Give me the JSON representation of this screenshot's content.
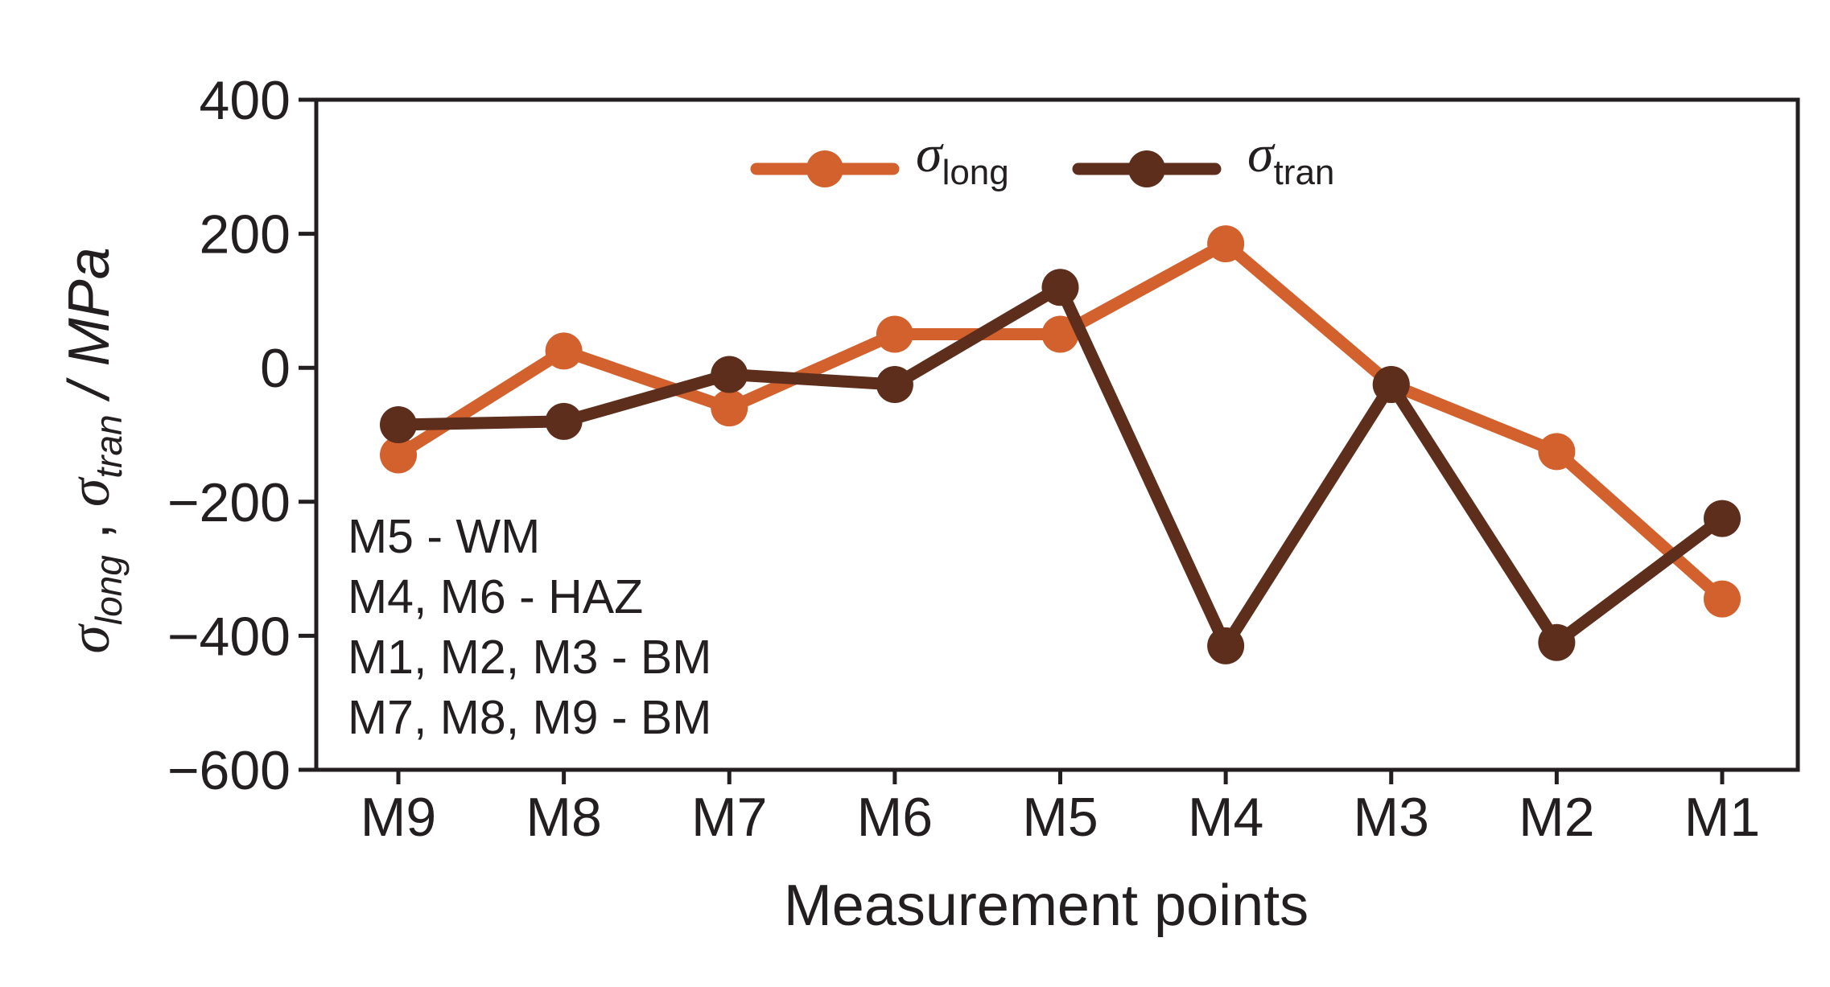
{
  "chart_data": {
    "type": "line",
    "categories": [
      "M9",
      "M8",
      "M7",
      "M6",
      "M5",
      "M4",
      "M3",
      "M2",
      "M1"
    ],
    "series": [
      {
        "name": "σlong",
        "name_symbol": "σ",
        "name_sub": "long",
        "color": "#d2612d",
        "values": [
          -130,
          25,
          -60,
          50,
          50,
          185,
          -25,
          -125,
          -345
        ]
      },
      {
        "name": "σtran",
        "name_symbol": "σ",
        "name_sub": "tran",
        "color": "#5e2e1d",
        "values": [
          -85,
          -80,
          -10,
          -25,
          120,
          -415,
          -25,
          -410,
          -225
        ]
      }
    ],
    "xlabel": "Measurement points",
    "ylabel": {
      "sym1": "σ",
      "sub1": "long",
      "sep": " , ",
      "sym2": "σ",
      "sub2": "tran",
      "unit": " / MPa"
    },
    "ylim": [
      -600,
      400
    ],
    "yticks": [
      400,
      200,
      0,
      -200,
      -400,
      -600
    ],
    "ytick_labels": [
      "400",
      "200",
      "0",
      "−200",
      "−400",
      "−600"
    ],
    "grid": false,
    "legend_position": "top-center",
    "annotations": [
      "M5 - WM",
      "M4, M6 - HAZ",
      "M1, M2, M3 - BM",
      "M7, M8, M9 - BM"
    ]
  }
}
